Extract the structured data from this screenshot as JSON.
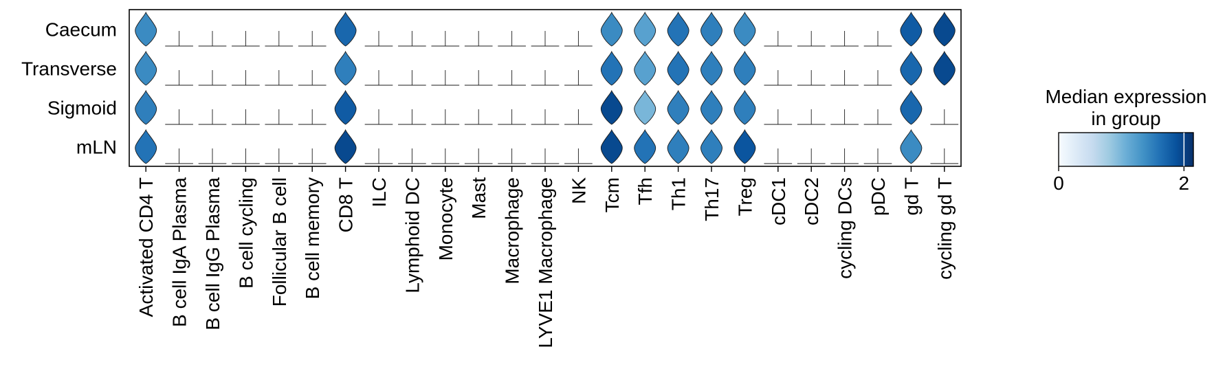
{
  "chart_data": {
    "type": "stacked-violin",
    "rows": [
      "Caecum",
      "Transverse",
      "Sigmoid",
      "mLN"
    ],
    "categories": [
      "Activated CD4 T",
      "B cell IgA Plasma",
      "B cell IgG Plasma",
      "B cell cycling",
      "Follicular B cell",
      "B cell memory",
      "CD8 T",
      "ILC",
      "Lymphoid DC",
      "Monocyte",
      "Mast",
      "Macrophage",
      "LYVE1 Macrophage",
      "NK",
      "Tcm",
      "Tfh",
      "Th1",
      "Th17",
      "Treg",
      "cDC1",
      "cDC2",
      "cycling DCs",
      "pDC",
      "gd T",
      "cycling gd T"
    ],
    "median_expression": [
      [
        1.4,
        0.0,
        0.0,
        0.0,
        0.0,
        0.0,
        1.7,
        0.0,
        0.0,
        0.0,
        0.0,
        0.0,
        0.0,
        0.0,
        1.4,
        1.2,
        1.6,
        1.5,
        1.4,
        0.0,
        0.0,
        0.0,
        0.0,
        1.8,
        1.95
      ],
      [
        1.4,
        0.0,
        0.0,
        0.0,
        0.0,
        0.0,
        1.5,
        0.0,
        0.0,
        0.0,
        0.0,
        0.0,
        0.0,
        0.0,
        1.6,
        1.2,
        1.6,
        1.5,
        1.5,
        0.0,
        0.0,
        0.0,
        0.0,
        1.7,
        1.95
      ],
      [
        1.5,
        0.0,
        0.0,
        0.0,
        0.0,
        0.0,
        1.8,
        0.0,
        0.0,
        0.0,
        0.0,
        0.0,
        0.0,
        0.0,
        1.95,
        1.0,
        1.5,
        1.5,
        1.5,
        0.0,
        0.0,
        0.0,
        0.0,
        1.7,
        0.0
      ],
      [
        1.6,
        0.0,
        0.0,
        0.0,
        0.0,
        0.0,
        1.95,
        0.0,
        0.0,
        0.0,
        0.0,
        0.0,
        0.0,
        0.0,
        1.95,
        1.6,
        1.5,
        1.5,
        1.85,
        0.0,
        0.0,
        0.0,
        0.0,
        1.4,
        0.0
      ]
    ],
    "colorbar": {
      "title": "Median expression in group",
      "title_lines": [
        "Median expression",
        "in group"
      ],
      "range": [
        0,
        2.15
      ],
      "ticks": [
        "0",
        "2"
      ],
      "tick_values": [
        0,
        2
      ],
      "marker_value": 2.0,
      "colormap": "Blues",
      "stops": [
        "#f7fbff",
        "#deebf7",
        "#c6dbef",
        "#9ecae1",
        "#6baed6",
        "#4292c6",
        "#2171b5",
        "#08519c",
        "#08306b"
      ]
    }
  }
}
